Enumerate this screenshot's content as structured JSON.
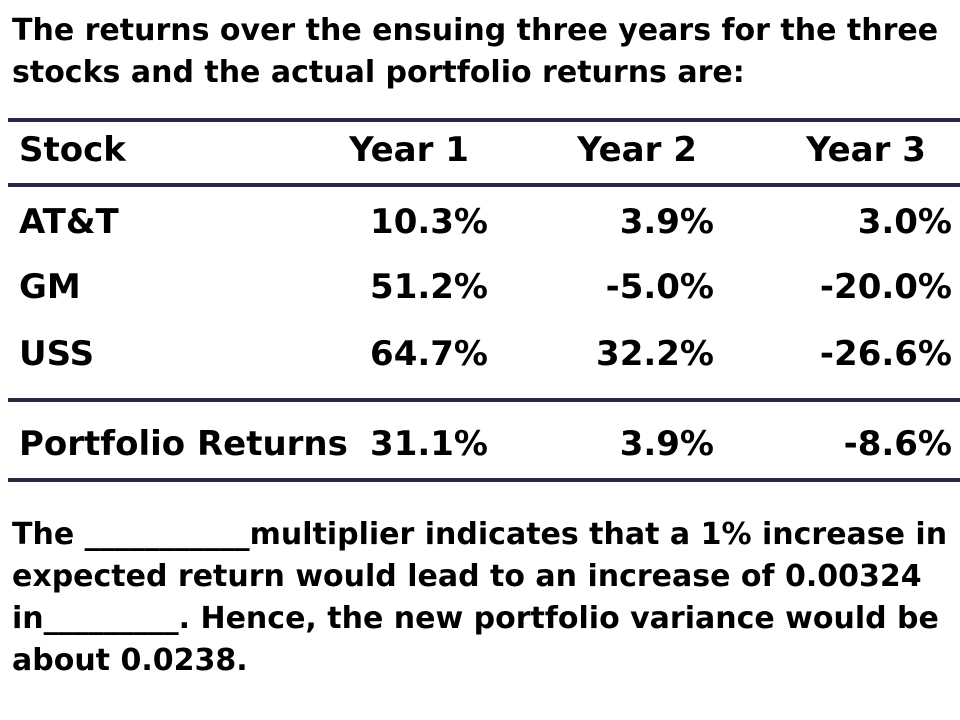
{
  "intro": "The returns over the ensuing three years for the three stocks and the actual portfolio returns are:",
  "table": {
    "headers": [
      "Stock",
      "Year 1",
      "Year 2",
      "Year 3"
    ],
    "rows": [
      {
        "stock": "AT&T",
        "year1": "10.3%",
        "year2": "3.9%",
        "year3": "3.0%"
      },
      {
        "stock": "GM",
        "year1": "51.2%",
        "year2": "-5.0%",
        "year3": "-20.0%"
      },
      {
        "stock": "USS",
        "year1": "64.7%",
        "year2": "32.2%",
        "year3": "-26.6%"
      }
    ],
    "portfolio": {
      "label": "Portfolio Returns",
      "year1": "31.1%",
      "year2": "3.9%",
      "year3": "-8.6%"
    }
  },
  "closing": "The ___________multiplier indicates that a 1% increase in expected return would lead to an increase of 0.00324 in_________. Hence, the new portfolio variance would be about 0.0238.",
  "colors": {
    "rule": "#2e2444"
  }
}
